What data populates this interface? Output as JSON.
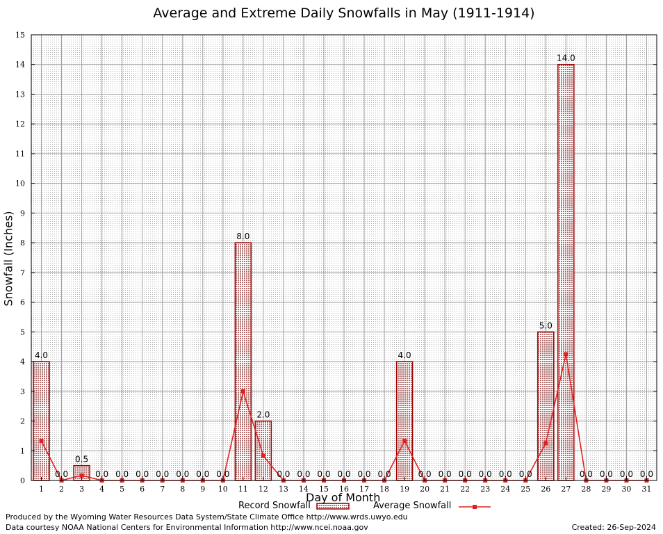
{
  "chart_data": {
    "type": "bar",
    "title": "Average and Extreme Daily Snowfalls in May (1911-1914)",
    "xlabel": "Day of Month",
    "ylabel": "Snowfall (Inches)",
    "ylim": [
      0,
      15
    ],
    "yticks": [
      "0",
      "1",
      "2",
      "3",
      "4",
      "5",
      "6",
      "7",
      "8",
      "9",
      "10",
      "11",
      "12",
      "13",
      "14",
      "15"
    ],
    "categories": [
      "1",
      "2",
      "3",
      "4",
      "5",
      "6",
      "7",
      "8",
      "9",
      "10",
      "11",
      "12",
      "13",
      "14",
      "15",
      "16",
      "17",
      "18",
      "19",
      "20",
      "21",
      "22",
      "23",
      "24",
      "25",
      "26",
      "27",
      "28",
      "29",
      "30",
      "31"
    ],
    "series": [
      {
        "name": "Record Snowfall",
        "values": [
          4.0,
          0.0,
          0.5,
          0.0,
          0.0,
          0.0,
          0.0,
          0.0,
          0.0,
          0.0,
          8.0,
          2.0,
          0.0,
          0.0,
          0.0,
          0.0,
          0.0,
          0.0,
          4.0,
          0.0,
          0.0,
          0.0,
          0.0,
          0.0,
          0.0,
          5.0,
          14.0,
          0.0,
          0.0,
          0.0,
          0.0
        ],
        "labels": [
          "4.0",
          "0.0",
          "0.5",
          "0.0",
          "0.0",
          "0.0",
          "0.0",
          "0.0",
          "0.0",
          "0.0",
          "8.0",
          "2.0",
          "0.0",
          "0.0",
          "0.0",
          "0.0",
          "0.0",
          "0.0",
          "4.0",
          "0.0",
          "0.0",
          "0.0",
          "0.0",
          "0.0",
          "0.0",
          "5.0",
          "14.0",
          "0.0",
          "0.0",
          "0.0",
          "0.0"
        ]
      },
      {
        "name": "Average Snowfall",
        "values": [
          1.33,
          0.0,
          0.17,
          0.0,
          0.0,
          0.0,
          0.0,
          0.0,
          0.0,
          0.0,
          3.0,
          0.83,
          0.0,
          0.0,
          0.0,
          0.0,
          0.0,
          0.0,
          1.33,
          0.0,
          0.0,
          0.0,
          0.0,
          0.0,
          0.0,
          1.25,
          4.25,
          0.0,
          0.0,
          0.0,
          0.0
        ]
      }
    ],
    "grid": true,
    "legend": "bottom",
    "colors": {
      "bar_outline": "#a00000",
      "bar_fill": "#c8a0a0",
      "line": "#e02020"
    }
  },
  "footer": {
    "credit_line1": "Produced by the Wyoming Water Resources Data System/State Climate Office http://www.wrds.uwyo.edu",
    "credit_line2": "Data courtesy NOAA National Centers for Environmental Information http://www.ncei.noaa.gov",
    "created": "Created:  26-Sep-2024"
  }
}
